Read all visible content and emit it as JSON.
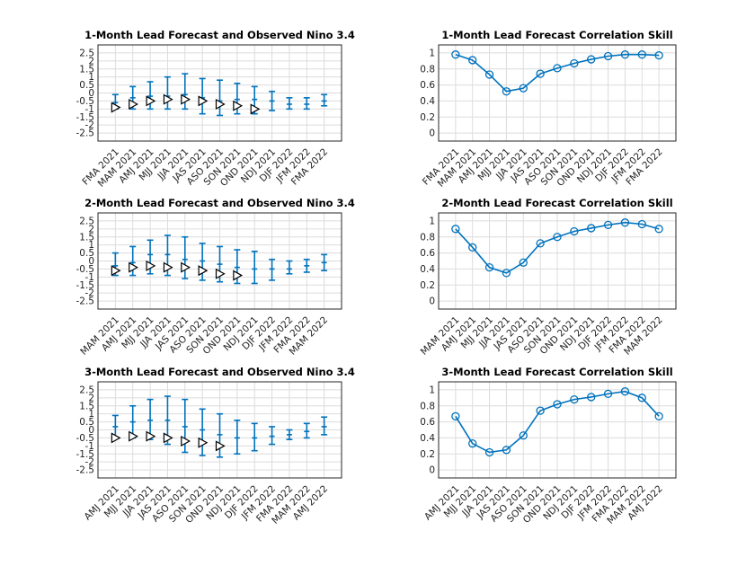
{
  "colors": {
    "series": "#0072bd",
    "observed_fill": "#ffffff",
    "observed_stroke": "#000000",
    "grid": "#dcdcdc"
  },
  "chart_data": [
    {
      "type": "errorbar",
      "title": "1-Month Lead Forecast and Observed Nino 3.4",
      "categories": [
        "FMA 2021",
        "MAM 2021",
        "AMJ 2021",
        "MJJ 2021",
        "JJA 2021",
        "JAS 2021",
        "ASO 2021",
        "SON 2021",
        "OND 2021",
        "NDJ 2021",
        "DJF 2022",
        "JFM 2022",
        "FMA 2022"
      ],
      "ylim": [
        -3,
        3
      ],
      "yticks": [
        "-2.5",
        "-2",
        "-1.5",
        "-1",
        "-0.5",
        "0",
        "0.5",
        "1",
        "1.5",
        "2",
        "2.5"
      ],
      "grid": true,
      "series": [
        {
          "kind": "forecast",
          "mean": [
            -0.6,
            -0.3,
            -0.2,
            -0.2,
            -0.1,
            -0.3,
            -0.5,
            -0.4,
            -0.4,
            -0.5,
            -0.7,
            -0.7,
            -0.5
          ],
          "low": [
            -1.0,
            -1.0,
            -1.0,
            -1.0,
            -1.0,
            -1.3,
            -1.4,
            -1.3,
            -1.3,
            -1.1,
            -1.0,
            -1.0,
            -0.8
          ],
          "high": [
            -0.1,
            0.4,
            0.7,
            1.0,
            1.2,
            0.9,
            0.8,
            0.6,
            0.4,
            0.1,
            -0.3,
            -0.3,
            -0.1
          ]
        },
        {
          "kind": "observed",
          "values": [
            -0.9,
            -0.7,
            -0.5,
            -0.4,
            -0.4,
            -0.5,
            -0.7,
            -0.8,
            -1.0,
            null,
            null,
            null,
            null
          ]
        }
      ]
    },
    {
      "type": "line",
      "title": "1-Month Lead Forecast Correlation Skill",
      "categories": [
        "FMA 2021",
        "MAM 2021",
        "AMJ 2021",
        "MJJ 2021",
        "JJA 2021",
        "JAS 2021",
        "ASO 2021",
        "SON 2021",
        "OND 2021",
        "NDJ 2021",
        "DJF 2022",
        "JFM 2022",
        "FMA 2022"
      ],
      "ylim": [
        -0.1,
        1.1
      ],
      "yticks": [
        "0",
        "0.2",
        "0.4",
        "0.6",
        "0.8",
        "1"
      ],
      "grid": true,
      "series": [
        {
          "values": [
            0.98,
            0.91,
            0.73,
            0.52,
            0.56,
            0.74,
            0.81,
            0.87,
            0.92,
            0.96,
            0.98,
            0.98,
            0.97
          ]
        }
      ]
    },
    {
      "type": "errorbar",
      "title": "2-Month Lead Forecast and Observed Nino 3.4",
      "categories": [
        "MAM 2021",
        "AMJ 2021",
        "MJJ 2021",
        "JJA 2021",
        "JAS 2021",
        "ASO 2021",
        "SON 2021",
        "OND 2021",
        "NDJ 2021",
        "DJF 2022",
        "JFM 2022",
        "FMA 2022",
        "MAM 2022"
      ],
      "ylim": [
        -3,
        3
      ],
      "yticks": [
        "-2.5",
        "-2",
        "-1.5",
        "-1",
        "-0.5",
        "0",
        "0.5",
        "1",
        "1.5",
        "2",
        "2.5"
      ],
      "grid": true,
      "series": [
        {
          "kind": "forecast",
          "mean": [
            -0.3,
            -0.1,
            0.4,
            0.4,
            0.1,
            0.0,
            -0.2,
            -0.4,
            -0.5,
            -0.5,
            -0.5,
            -0.3,
            -0.1
          ],
          "low": [
            -0.9,
            -0.9,
            -0.8,
            -0.9,
            -1.1,
            -1.2,
            -1.3,
            -1.4,
            -1.4,
            -1.2,
            -0.8,
            -0.7,
            -0.6
          ],
          "high": [
            0.5,
            0.9,
            1.3,
            1.6,
            1.5,
            1.1,
            0.9,
            0.7,
            0.6,
            0.1,
            0.0,
            0.1,
            0.4
          ]
        },
        {
          "kind": "observed",
          "values": [
            -0.6,
            -0.4,
            -0.3,
            -0.4,
            -0.4,
            -0.6,
            -0.8,
            -0.9,
            null,
            null,
            null,
            null,
            null
          ]
        }
      ]
    },
    {
      "type": "line",
      "title": "2-Month Lead Forecast Correlation Skill",
      "categories": [
        "MAM 2021",
        "AMJ 2021",
        "MJJ 2021",
        "JJA 2021",
        "JAS 2021",
        "ASO 2021",
        "SON 2021",
        "OND 2021",
        "NDJ 2021",
        "DJF 2022",
        "JFM 2022",
        "FMA 2022",
        "MAM 2022"
      ],
      "ylim": [
        -0.1,
        1.1
      ],
      "yticks": [
        "0",
        "0.2",
        "0.4",
        "0.6",
        "0.8",
        "1"
      ],
      "grid": true,
      "series": [
        {
          "values": [
            0.9,
            0.67,
            0.42,
            0.35,
            0.48,
            0.72,
            0.8,
            0.87,
            0.91,
            0.95,
            0.98,
            0.96,
            0.9
          ]
        }
      ]
    },
    {
      "type": "errorbar",
      "title": "3-Month Lead Forecast and Observed Nino 3.4",
      "categories": [
        "AMJ 2021",
        "MJJ 2021",
        "JJA 2021",
        "JAS 2021",
        "ASO 2021",
        "SON 2021",
        "OND 2021",
        "NDJ 2021",
        "DJF 2022",
        "JFM 2022",
        "FMA 2022",
        "MAM 2022",
        "AMJ 2022"
      ],
      "ylim": [
        -3,
        3
      ],
      "yticks": [
        "-2.5",
        "-2",
        "-1.5",
        "-1",
        "-0.5",
        "0",
        "0.5",
        "1",
        "1.5",
        "2",
        "2.5"
      ],
      "grid": true,
      "series": [
        {
          "kind": "forecast",
          "mean": [
            0.2,
            0.5,
            0.6,
            0.6,
            0.2,
            0.0,
            -0.3,
            -0.5,
            -0.5,
            -0.4,
            -0.3,
            -0.1,
            0.2
          ],
          "low": [
            -0.5,
            -0.5,
            -0.6,
            -0.9,
            -1.4,
            -1.6,
            -1.7,
            -1.5,
            -1.3,
            -0.9,
            -0.6,
            -0.5,
            -0.3
          ],
          "high": [
            0.9,
            1.5,
            1.9,
            2.1,
            1.9,
            1.3,
            1.0,
            0.6,
            0.4,
            0.2,
            0.0,
            0.4,
            0.8
          ]
        },
        {
          "kind": "observed",
          "values": [
            -0.5,
            -0.4,
            -0.4,
            -0.5,
            -0.7,
            -0.8,
            -1.0,
            null,
            null,
            null,
            null,
            null,
            null
          ]
        }
      ]
    },
    {
      "type": "line",
      "title": "3-Month Lead Forecast Correlation Skill",
      "categories": [
        "AMJ 2021",
        "MJJ 2021",
        "JJA 2021",
        "JAS 2021",
        "ASO 2021",
        "SON 2021",
        "OND 2021",
        "NDJ 2021",
        "DJF 2022",
        "JFM 2022",
        "FMA 2022",
        "MAM 2022",
        "AMJ 2022"
      ],
      "ylim": [
        -0.1,
        1.1
      ],
      "yticks": [
        "0",
        "0.2",
        "0.4",
        "0.6",
        "0.8",
        "1"
      ],
      "grid": true,
      "series": [
        {
          "values": [
            0.67,
            0.33,
            0.22,
            0.25,
            0.43,
            0.74,
            0.82,
            0.88,
            0.91,
            0.95,
            0.98,
            0.9,
            0.67
          ]
        }
      ]
    }
  ]
}
